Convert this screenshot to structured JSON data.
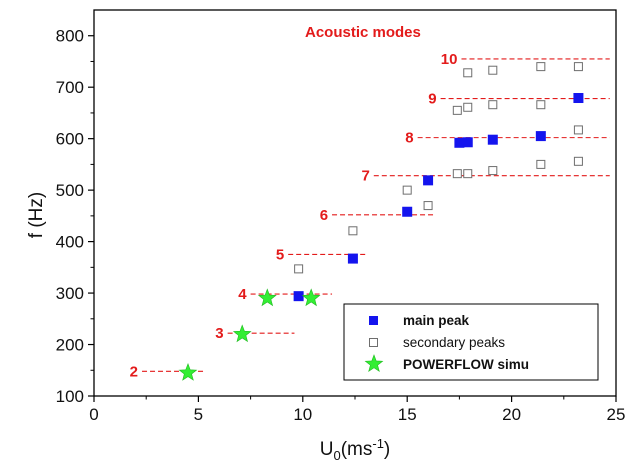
{
  "chart_data": {
    "type": "scatter",
    "title": "",
    "xlabel": "U",
    "xlabel_sub": "0",
    "xlabel_unit": "(ms",
    "xlabel_sup": "-1",
    "xlabel_close": ")",
    "ylabel": "f (Hz)",
    "xlim": [
      0,
      25
    ],
    "ylim": [
      100,
      850
    ],
    "xticks": [
      0,
      5,
      10,
      15,
      20,
      25
    ],
    "yticks": [
      100,
      200,
      300,
      400,
      500,
      600,
      700,
      800
    ],
    "annotation": "Acoustic modes",
    "colors": {
      "main": "#1414ee",
      "secondary": "#6e6e6e",
      "powerflow": "#33ee33",
      "mode": "#e31b1b"
    },
    "modes": [
      {
        "label": "2",
        "f": 148,
        "x_from": 2.3,
        "x_to": 5.3
      },
      {
        "label": "3",
        "f": 222,
        "x_from": 6.4,
        "x_to": 9.6
      },
      {
        "label": "4",
        "f": 298,
        "x_from": 7.5,
        "x_to": 11.4
      },
      {
        "label": "5",
        "f": 375,
        "x_from": 9.3,
        "x_to": 13.0
      },
      {
        "label": "6",
        "f": 452,
        "x_from": 11.4,
        "x_to": 16.3
      },
      {
        "label": "7",
        "f": 528,
        "x_from": 13.4,
        "x_to": 24.7
      },
      {
        "label": "8",
        "f": 602,
        "x_from": 15.5,
        "x_to": 24.7
      },
      {
        "label": "9",
        "f": 678,
        "x_from": 16.6,
        "x_to": 24.7
      },
      {
        "label": "10",
        "f": 755,
        "x_from": 17.6,
        "x_to": 24.7
      }
    ],
    "series": [
      {
        "name": "main peak",
        "marker": "filled-square",
        "x": [
          9.8,
          12.4,
          15.0,
          16.0,
          17.5,
          17.9,
          19.1,
          21.4,
          23.2
        ],
        "y": [
          294,
          367,
          458,
          519,
          592,
          593,
          598,
          605,
          679
        ]
      },
      {
        "name": "secondary peaks",
        "marker": "open-square",
        "x": [
          9.8,
          12.4,
          15.0,
          16.0,
          17.4,
          17.9,
          19.1,
          21.4,
          23.2,
          17.4,
          17.9,
          19.1,
          21.4,
          23.2,
          17.9,
          19.1,
          21.4,
          23.2
        ],
        "y": [
          347,
          421,
          500,
          470,
          532,
          532,
          538,
          550,
          556,
          655,
          661,
          666,
          666,
          617,
          728,
          733,
          740,
          740
        ]
      },
      {
        "name": "POWERFLOW simu",
        "marker": "star",
        "x": [
          4.5,
          7.1,
          8.3,
          10.4
        ],
        "y": [
          145,
          220,
          290,
          290
        ]
      }
    ],
    "legend": {
      "position": "bottom-right"
    }
  }
}
